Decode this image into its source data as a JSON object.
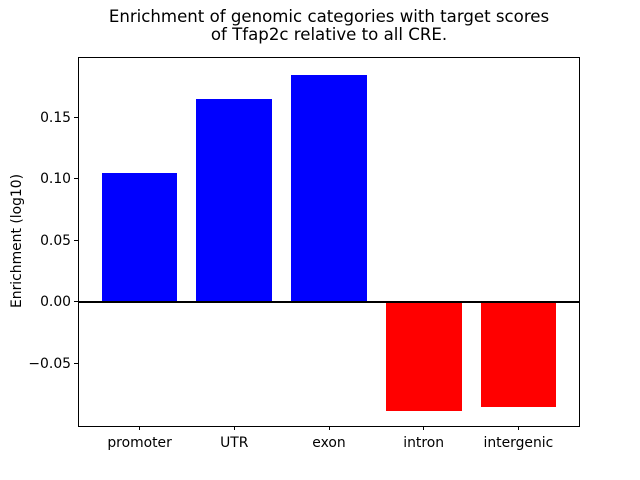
{
  "figure": {
    "title_line1": "Enrichment of genomic categories with target scores",
    "title_line2": "of Tfap2c relative to all CRE."
  },
  "chart_data": {
    "type": "bar",
    "title": "Enrichment of genomic categories with target scores\nof Tfap2c relative to all CRE.",
    "categories": [
      "promoter",
      "UTR",
      "exon",
      "intron",
      "intergenic"
    ],
    "values": [
      0.105,
      0.165,
      0.185,
      -0.088,
      -0.085
    ],
    "colors": [
      "#0000ff",
      "#0000ff",
      "#0000ff",
      "#ff0000",
      "#ff0000"
    ],
    "positive_color": "#0000ff",
    "negative_color": "#ff0000",
    "xlabel": "",
    "ylabel": "Enrichment (log10)",
    "ylim": [
      -0.1005,
      0.1985
    ],
    "xlim": [
      -0.64,
      4.64
    ],
    "yticks": [
      -0.05,
      0.0,
      0.05,
      0.1,
      0.15
    ],
    "ytick_labels": [
      "−0.05",
      "0.00",
      "0.05",
      "0.10",
      "0.15"
    ],
    "bar_width": 0.8,
    "grid": false,
    "legend": "none",
    "zero_line": true,
    "frame": true,
    "background": "#ffffff"
  }
}
